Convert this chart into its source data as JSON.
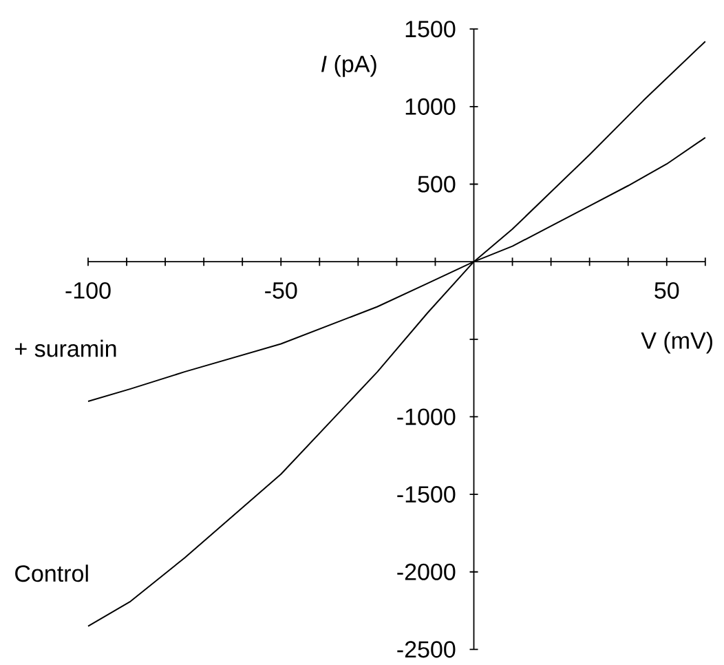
{
  "chart_data": {
    "type": "line",
    "xlabel": "V (mV)",
    "ylabel": "*I* (pA)",
    "xlim": [
      -100,
      60
    ],
    "ylim": [
      -2500,
      1500
    ],
    "xticks": [
      -100,
      {
        "value": -90,
        "label": null
      },
      {
        "value": -80,
        "label": null
      },
      {
        "value": -70,
        "label": null
      },
      {
        "value": -60,
        "label": null
      },
      -50,
      {
        "value": -40,
        "label": null
      },
      {
        "value": -30,
        "label": null
      },
      {
        "value": -20,
        "label": null
      },
      {
        "value": -10,
        "label": null
      },
      {
        "value": 10,
        "label": null
      },
      {
        "value": 20,
        "label": null
      },
      {
        "value": 30,
        "label": null
      },
      {
        "value": 40,
        "label": null
      },
      50,
      {
        "value": 60,
        "label": null
      }
    ],
    "yticks": [
      -2500,
      -2000,
      -1500,
      -1000,
      {
        "value": -500,
        "label": null
      },
      500,
      1000,
      1500
    ],
    "series": [
      {
        "name": "+ suramin",
        "color": "#000000",
        "x": [
          -100,
          -89,
          -75,
          -50,
          -25,
          -12,
          0,
          10,
          20,
          30,
          40,
          50,
          60
        ],
        "values": [
          -900,
          -820,
          -710,
          -530,
          -290,
          -140,
          0,
          100,
          230,
          360,
          490,
          630,
          800
        ]
      },
      {
        "name": "Control",
        "color": "#000000",
        "x": [
          -100,
          -89,
          -75,
          -50,
          -25,
          -12,
          0,
          10,
          20,
          30,
          44,
          60
        ],
        "values": [
          -2350,
          -2190,
          -1910,
          -1370,
          -710,
          -330,
          0,
          210,
          450,
          690,
          1040,
          1420
        ]
      }
    ]
  }
}
